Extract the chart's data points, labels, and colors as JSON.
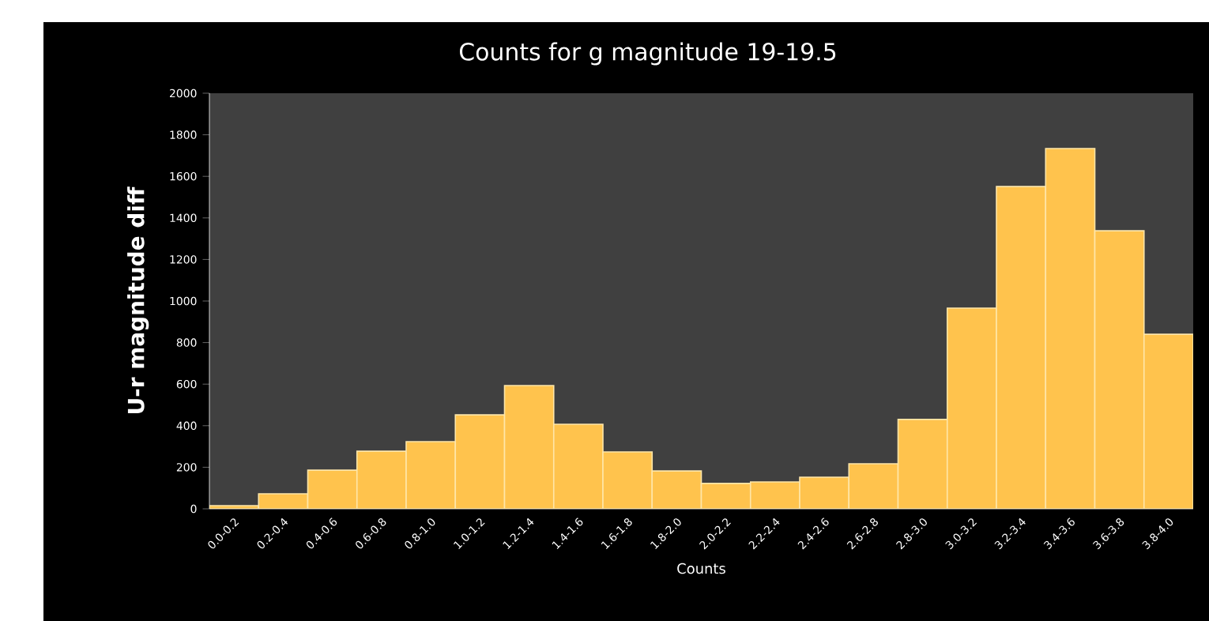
{
  "chart_data": {
    "type": "bar",
    "title": "Counts for g magnitude 19-19.5",
    "xlabel": "Counts",
    "ylabel": "U-r magnitude diff",
    "categories": [
      "0.0-0.2",
      "0.2-0.4",
      "0.4-0.6",
      "0.6-0.8",
      "0.8-1.0",
      "1.0-1.2",
      "1.2-1.4",
      "1.4-1.6",
      "1.6-1.8",
      "1.8-2.0",
      "2.0-2.2",
      "2.2-2.4",
      "2.4-2.6",
      "2.6-2.8",
      "2.8-3.0",
      "3.0-3.2",
      "3.2-3.4",
      "3.4-3.6",
      "3.6-3.8",
      "3.8-4.0"
    ],
    "values": [
      15,
      72,
      186,
      277,
      323,
      452,
      593,
      407,
      274,
      182,
      122,
      129,
      152,
      217,
      430,
      966,
      1551,
      1734,
      1338,
      840
    ],
    "color": "#ffc34d",
    "ylim": [
      0,
      2000
    ],
    "yticks": [
      0,
      200,
      400,
      600,
      800,
      1000,
      1200,
      1400,
      1600,
      1800,
      2000
    ]
  }
}
